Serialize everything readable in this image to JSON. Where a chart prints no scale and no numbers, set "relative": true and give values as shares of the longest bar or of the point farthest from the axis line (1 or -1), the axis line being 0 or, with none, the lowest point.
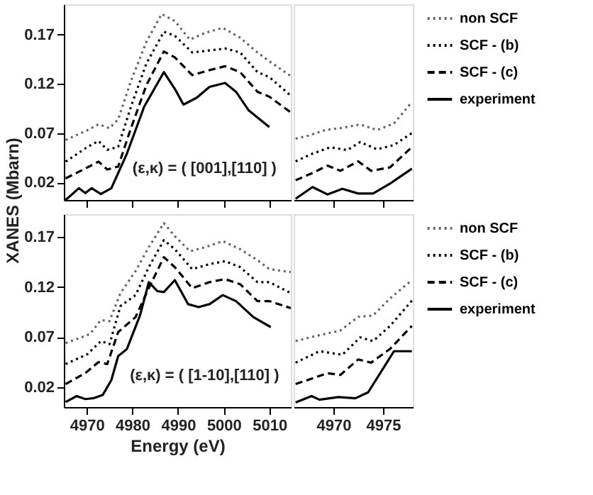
{
  "chart_data": [
    {
      "type": "line",
      "xlim": [
        4965,
        5014.7
      ],
      "xticks": [
        4970,
        4980,
        4990,
        5000,
        5010
      ],
      "ylim": [
        0.002,
        0.201
      ],
      "yticks": [
        0.02,
        0.07,
        0.12,
        0.17
      ],
      "tick_labels": "y",
      "grid": false,
      "legend": "right",
      "annotations": [
        "(ε,κ) = ( [001],[110] )"
      ],
      "series": [
        {
          "name": "non SCF",
          "color": "#666666",
          "line_style": "dotted",
          "x": [
            4965.4,
            4970.2,
            4972.6,
            4975.0,
            4976.9,
            4979.7,
            4983.1,
            4986.4,
            4989.3,
            4992.6,
            4996.0,
            4999.8,
            5003.6,
            5007.4,
            5010.0,
            5014.7
          ],
          "values": [
            0.063,
            0.073,
            0.079,
            0.075,
            0.084,
            0.123,
            0.163,
            0.191,
            0.184,
            0.165,
            0.172,
            0.177,
            0.167,
            0.152,
            0.143,
            0.128
          ]
        },
        {
          "name": "SCF - (b)",
          "color": "#000000",
          "line_style": "dotted",
          "x": [
            4965.4,
            4970.2,
            4972.6,
            4974.5,
            4976.9,
            4979.7,
            4983.1,
            4986.9,
            4989.3,
            4993.1,
            4996.9,
            5000.3,
            5003.6,
            5007.4,
            5010.0,
            5014.7
          ],
          "values": [
            0.041,
            0.056,
            0.062,
            0.053,
            0.056,
            0.097,
            0.141,
            0.173,
            0.169,
            0.152,
            0.154,
            0.156,
            0.152,
            0.132,
            0.127,
            0.108
          ]
        },
        {
          "name": "SCF - (c)",
          "color": "#000000",
          "line_style": "dashed",
          "x": [
            4965.4,
            4969.7,
            4972.6,
            4974.5,
            4976.9,
            4979.7,
            4983.1,
            4986.9,
            4989.3,
            4993.1,
            4996.9,
            5000.3,
            5003.6,
            5007.4,
            5010.0,
            5014.7
          ],
          "values": [
            0.024,
            0.034,
            0.041,
            0.033,
            0.036,
            0.075,
            0.119,
            0.153,
            0.147,
            0.129,
            0.134,
            0.138,
            0.132,
            0.112,
            0.107,
            0.091
          ]
        },
        {
          "name": "experiment",
          "color": "#000000",
          "line_style": "solid",
          "x": [
            4965.4,
            4968.3,
            4969.7,
            4971.1,
            4973.1,
            4975.4,
            4978.8,
            4982.6,
            4986.9,
            4989.3,
            4991.2,
            4994.1,
            4996.9,
            5000.3,
            5002.7,
            5005.5,
            5010.0
          ],
          "values": [
            0.002,
            0.014,
            0.009,
            0.014,
            0.008,
            0.014,
            0.049,
            0.097,
            0.132,
            0.115,
            0.099,
            0.106,
            0.117,
            0.121,
            0.112,
            0.093,
            0.076
          ]
        }
      ]
    },
    {
      "type": "line",
      "relative": true,
      "xlim": [
        4966,
        4978
      ],
      "xticks": [
        4970,
        4975
      ],
      "tick_labels": false,
      "grid": false,
      "legend": "right",
      "series": [
        {
          "name": "non SCF",
          "color": "#666666",
          "line_style": "dotted",
          "x": [
            4966.2,
            4967.5,
            4969.2,
            4970.9,
            4972.7,
            4974.4,
            4976.1,
            4977.9
          ],
          "values": [
            0.627,
            0.658,
            0.715,
            0.737,
            0.772,
            0.715,
            0.781,
            1.0
          ]
        },
        {
          "name": "SCF - (b)",
          "color": "#000000",
          "line_style": "dotted",
          "x": [
            4966.2,
            4967.9,
            4969.7,
            4971.4,
            4972.7,
            4974.4,
            4976.1,
            4977.9
          ],
          "values": [
            0.395,
            0.474,
            0.539,
            0.509,
            0.592,
            0.518,
            0.561,
            0.684
          ]
        },
        {
          "name": "SCF - (c)",
          "color": "#000000",
          "line_style": "dashed",
          "x": [
            4966.2,
            4967.9,
            4969.4,
            4970.7,
            4972.5,
            4973.8,
            4975.7,
            4977.9
          ],
          "values": [
            0.202,
            0.276,
            0.351,
            0.298,
            0.395,
            0.298,
            0.333,
            0.539
          ]
        },
        {
          "name": "experiment",
          "color": "#000000",
          "line_style": "solid",
          "x": [
            4966.2,
            4967.9,
            4969.4,
            4970.9,
            4972.5,
            4974.0,
            4975.7,
            4977.9
          ],
          "values": [
            0.013,
            0.132,
            0.057,
            0.114,
            0.066,
            0.066,
            0.167,
            0.32
          ]
        }
      ]
    },
    {
      "type": "line",
      "xlim": [
        4965,
        5014.7
      ],
      "xticks": [
        4970,
        4980,
        4990,
        5000,
        5010
      ],
      "ylim": [
        0,
        0.193
      ],
      "yticks": [
        0.02,
        0.07,
        0.12,
        0.17
      ],
      "grid": false,
      "legend": "right",
      "xlabel": "Energy (eV)",
      "ylabel": "XANES (Mbarn)",
      "annotations": [
        "(ε,κ) = ( [1-10],[110] )"
      ],
      "series": [
        {
          "name": "non SCF",
          "color": "#666666",
          "line_style": "dotted",
          "x": [
            4965.4,
            4970.7,
            4973.1,
            4975.0,
            4977.4,
            4980.7,
            4983.6,
            4986.9,
            4989.3,
            4992.6,
            4996.0,
            4999.8,
            5003.6,
            5007.4,
            5010.0,
            5014.7
          ],
          "values": [
            0.064,
            0.073,
            0.087,
            0.086,
            0.114,
            0.136,
            0.16,
            0.184,
            0.171,
            0.156,
            0.16,
            0.166,
            0.158,
            0.147,
            0.138,
            0.135
          ]
        },
        {
          "name": "SCF - (b)",
          "color": "#000000",
          "line_style": "dotted",
          "x": [
            4965.4,
            4970.2,
            4973.1,
            4975.0,
            4977.4,
            4980.7,
            4983.6,
            4986.9,
            4989.3,
            4993.1,
            4996.9,
            5000.3,
            5003.6,
            5007.4,
            5010.0,
            5014.7
          ],
          "values": [
            0.043,
            0.053,
            0.066,
            0.063,
            0.101,
            0.112,
            0.14,
            0.167,
            0.158,
            0.138,
            0.143,
            0.146,
            0.14,
            0.125,
            0.125,
            0.114
          ]
        },
        {
          "name": "SCF - (c)",
          "color": "#000000",
          "line_style": "dashed",
          "x": [
            4965.4,
            4969.7,
            4972.6,
            4974.5,
            4976.9,
            4980.7,
            4983.6,
            4986.9,
            4989.3,
            4993.1,
            4996.9,
            5000.3,
            5003.6,
            5007.4,
            5010.0,
            5014.7
          ],
          "values": [
            0.023,
            0.034,
            0.045,
            0.043,
            0.075,
            0.09,
            0.119,
            0.15,
            0.14,
            0.119,
            0.125,
            0.128,
            0.123,
            0.106,
            0.106,
            0.099
          ]
        },
        {
          "name": "experiment",
          "color": "#000000",
          "line_style": "solid",
          "x": [
            4965.4,
            4967.8,
            4969.7,
            4971.6,
            4973.5,
            4975.4,
            4976.9,
            4978.8,
            4981.7,
            4983.6,
            4985.5,
            4986.9,
            4989.3,
            4992.2,
            4994.5,
            4996.9,
            4999.8,
            5002.7,
            5006.5,
            5010.3
          ],
          "values": [
            0.005,
            0.011,
            0.008,
            0.009,
            0.012,
            0.027,
            0.051,
            0.058,
            0.092,
            0.125,
            0.116,
            0.115,
            0.127,
            0.103,
            0.1,
            0.103,
            0.112,
            0.106,
            0.09,
            0.08
          ]
        }
      ]
    },
    {
      "type": "line",
      "relative": true,
      "xlim": [
        4966,
        4978
      ],
      "xticks": [
        4970,
        4975
      ],
      "tick_labels": "x",
      "grid": false,
      "legend": "right",
      "series": [
        {
          "name": "non SCF",
          "color": "#666666",
          "line_style": "dotted",
          "x": [
            4966.2,
            4968.0,
            4970.7,
            4972.5,
            4974.0,
            4975.7,
            4977.9
          ],
          "values": [
            0.52,
            0.556,
            0.603,
            0.711,
            0.722,
            0.856,
            1.0
          ]
        },
        {
          "name": "SCF - (b)",
          "color": "#000000",
          "line_style": "dotted",
          "x": [
            4966.2,
            4968.6,
            4970.9,
            4972.7,
            4974.0,
            4975.7,
            4977.9
          ],
          "values": [
            0.35,
            0.44,
            0.412,
            0.549,
            0.52,
            0.639,
            0.838
          ]
        },
        {
          "name": "SCF - (c)",
          "color": "#000000",
          "line_style": "dashed",
          "x": [
            4966.2,
            4969.4,
            4970.7,
            4972.5,
            4973.8,
            4975.7,
            4977.9
          ],
          "values": [
            0.181,
            0.267,
            0.253,
            0.375,
            0.35,
            0.458,
            0.639
          ]
        },
        {
          "name": "experiment",
          "color": "#000000",
          "line_style": "solid",
          "x": [
            4966.2,
            4967.8,
            4968.6,
            4970.5,
            4972.2,
            4973.5,
            4976.1,
            4977.9
          ],
          "values": [
            0.036,
            0.087,
            0.058,
            0.079,
            0.069,
            0.116,
            0.44,
            0.44
          ]
        }
      ]
    }
  ]
}
